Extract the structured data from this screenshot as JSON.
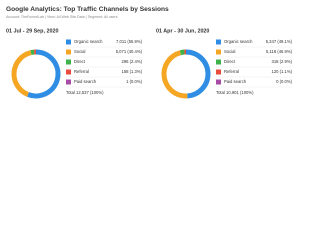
{
  "title": "Google Analytics: Top Traffic Channels by Sessions",
  "subtitle": "Account: TheFunnelLab | View: All Web Site Data | Segment: All users",
  "chart_data": [
    {
      "type": "donut",
      "title": "01 Jul - 29 Sep, 2020",
      "categories": [
        "Organic search",
        "Social",
        "Direct",
        "Referral",
        "Paid search"
      ],
      "colors": [
        "#2f8de4",
        "#f5a623",
        "#3fb24a",
        "#e94b3c",
        "#a64ca6"
      ],
      "values": [
        7011,
        5071,
        296,
        158,
        1
      ],
      "value_labels": [
        "7,011 (55.9%)",
        "5,071 (40.4%)",
        "296 (2.4%)",
        "158 (1.3%)",
        "1 (0.0%)"
      ],
      "total": "Total 12,537 (100%)"
    },
    {
      "type": "donut",
      "title": "01 Apr - 30 Jun, 2020",
      "categories": [
        "Organic search",
        "Social",
        "Direct",
        "Referral",
        "Paid search"
      ],
      "colors": [
        "#2f8de4",
        "#f5a623",
        "#3fb24a",
        "#e94b3c",
        "#a64ca6"
      ],
      "values": [
        5347,
        5116,
        318,
        120,
        0
      ],
      "value_labels": [
        "5,347 (49.1%)",
        "5,116 (46.9%)",
        "318 (2.9%)",
        "120 (1.1%)",
        "0 (0.0%)"
      ],
      "total": "Total 10,901 (100%)"
    }
  ]
}
